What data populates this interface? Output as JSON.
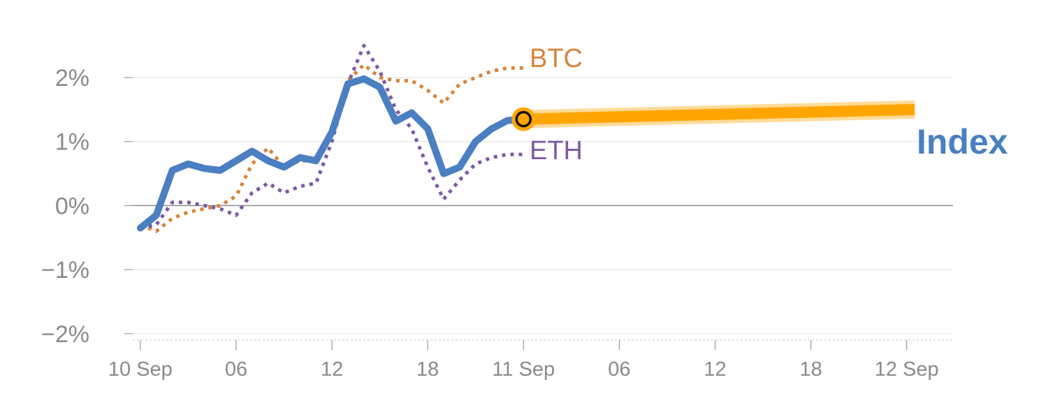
{
  "chart_data": {
    "type": "line",
    "xlabel": "",
    "ylabel": "",
    "x_ticks": [
      {
        "h": 0,
        "label": "10 Sep"
      },
      {
        "h": 6,
        "label": "06"
      },
      {
        "h": 12,
        "label": "12"
      },
      {
        "h": 18,
        "label": "18"
      },
      {
        "h": 24,
        "label": "11 Sep"
      },
      {
        "h": 30,
        "label": "06"
      },
      {
        "h": 36,
        "label": "12"
      },
      {
        "h": 42,
        "label": "18"
      },
      {
        "h": 48,
        "label": "12 Sep"
      }
    ],
    "y_ticks": [
      {
        "v": 2,
        "label": "2%"
      },
      {
        "v": 1,
        "label": "1%"
      },
      {
        "v": 0,
        "label": "0%"
      },
      {
        "v": -1,
        "label": "−1%"
      },
      {
        "v": -2,
        "label": "−2%"
      }
    ],
    "xlim": [
      -1,
      50.9
    ],
    "ylim": [
      -2.1,
      2.6
    ],
    "grid": true,
    "series": [
      {
        "name": "BTC",
        "style": "dotted",
        "color": "#d8843a",
        "points": [
          [
            0,
            -0.3
          ],
          [
            1,
            -0.4
          ],
          [
            2,
            -0.2
          ],
          [
            3,
            -0.1
          ],
          [
            4,
            -0.05
          ],
          [
            5,
            0.0
          ],
          [
            6,
            0.15
          ],
          [
            7,
            0.65
          ],
          [
            8,
            0.9
          ],
          [
            9,
            0.6
          ],
          [
            10,
            0.7
          ],
          [
            11,
            0.7
          ],
          [
            12,
            1.15
          ],
          [
            13,
            1.95
          ],
          [
            14,
            2.2
          ],
          [
            15,
            2.0
          ],
          [
            16,
            1.95
          ],
          [
            17,
            1.95
          ],
          [
            18,
            1.8
          ],
          [
            19,
            1.6
          ],
          [
            20,
            1.9
          ],
          [
            21,
            2.0
          ],
          [
            22,
            2.1
          ],
          [
            23,
            2.15
          ],
          [
            24,
            2.15
          ]
        ]
      },
      {
        "name": "ETH",
        "style": "dotted",
        "color": "#7b5aa6",
        "points": [
          [
            0,
            -0.35
          ],
          [
            1,
            -0.3
          ],
          [
            2,
            0.05
          ],
          [
            3,
            0.05
          ],
          [
            4,
            0.0
          ],
          [
            5,
            -0.05
          ],
          [
            6,
            -0.15
          ],
          [
            7,
            0.2
          ],
          [
            8,
            0.35
          ],
          [
            9,
            0.2
          ],
          [
            10,
            0.3
          ],
          [
            11,
            0.35
          ],
          [
            12,
            1.0
          ],
          [
            13,
            1.9
          ],
          [
            14,
            2.5
          ],
          [
            15,
            2.1
          ],
          [
            16,
            1.5
          ],
          [
            17,
            1.2
          ],
          [
            18,
            0.6
          ],
          [
            19,
            0.1
          ],
          [
            20,
            0.4
          ],
          [
            21,
            0.65
          ],
          [
            22,
            0.75
          ],
          [
            23,
            0.8
          ],
          [
            24,
            0.8
          ]
        ]
      },
      {
        "name": "Index",
        "style": "solid",
        "color": "#4a7fc1",
        "points": [
          [
            0,
            -0.35
          ],
          [
            1,
            -0.15
          ],
          [
            2,
            0.55
          ],
          [
            3,
            0.65
          ],
          [
            4,
            0.58
          ],
          [
            5,
            0.55
          ],
          [
            6,
            0.7
          ],
          [
            7,
            0.85
          ],
          [
            8,
            0.7
          ],
          [
            9,
            0.6
          ],
          [
            10,
            0.75
          ],
          [
            11,
            0.7
          ],
          [
            12,
            1.15
          ],
          [
            13,
            1.9
          ],
          [
            14,
            1.98
          ],
          [
            15,
            1.85
          ],
          [
            16,
            1.32
          ],
          [
            17,
            1.45
          ],
          [
            18,
            1.2
          ],
          [
            19,
            0.5
          ],
          [
            20,
            0.6
          ],
          [
            21,
            1.0
          ],
          [
            22,
            1.2
          ],
          [
            23,
            1.33
          ],
          [
            24,
            1.35
          ]
        ]
      }
    ],
    "projection": {
      "color": "#ffa500",
      "points": [
        [
          24,
          1.35
        ],
        [
          48.5,
          1.5
        ]
      ]
    },
    "marker": {
      "h": 24,
      "v": 1.35,
      "fill": "#ffa500",
      "ring": "#111111"
    }
  }
}
